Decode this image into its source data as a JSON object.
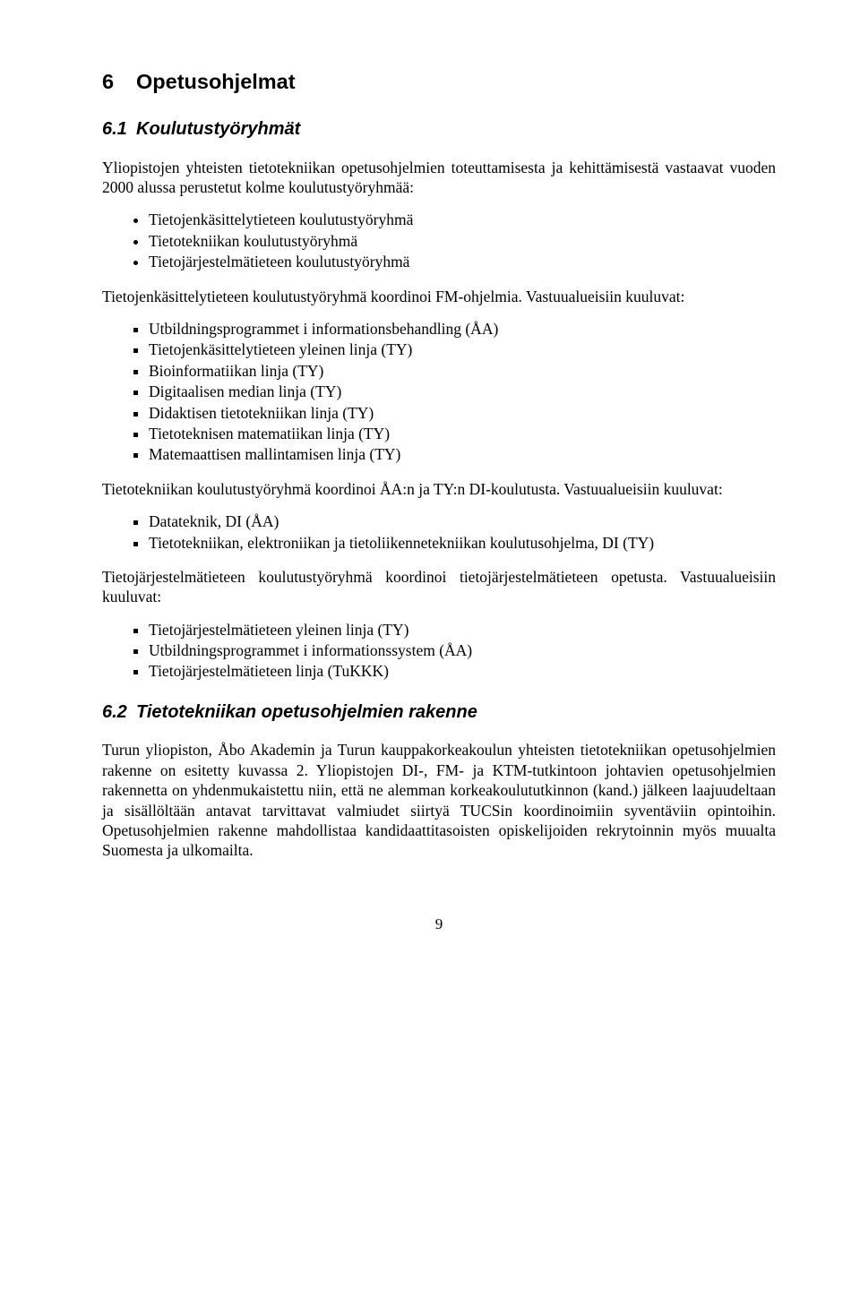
{
  "h1": {
    "num": "6",
    "text": "Opetusohjelmat"
  },
  "s61": {
    "num": "6.1",
    "heading": "Koulutustyöryhmät",
    "intro": "Yliopistojen yhteisten tietotekniikan opetusohjelmien toteuttamisesta ja kehittämisestä vastaavat vuoden 2000 alussa perustetut kolme koulutustyöryhmää:",
    "bullets1": [
      "Tietojenkäsittelytieteen koulutustyöryhmä",
      "Tietotekniikan koulutustyöryhmä",
      "Tietojärjestelmätieteen koulutustyöryhmä"
    ],
    "p2": "Tietojenkäsittelytieteen koulutustyöryhmä koordinoi FM-ohjelmia. Vastuualueisiin kuuluvat:",
    "bullets2": [
      "Utbildningsprogrammet i informationsbehandling (ÅA)",
      "Tietojenkäsittelytieteen yleinen linja (TY)",
      "Bioinformatiikan linja (TY)",
      "Digitaalisen median linja (TY)",
      "Didaktisen tietotekniikan linja (TY)",
      "Tietoteknisen matematiikan linja (TY)",
      "Matemaattisen mallintamisen linja (TY)"
    ],
    "p3": "Tietotekniikan koulutustyöryhmä koordinoi ÅA:n ja TY:n DI-koulutusta. Vastuualueisiin kuuluvat:",
    "bullets3": [
      "Datateknik, DI (ÅA)",
      "Tietotekniikan, elektroniikan ja tietoliikennetekniikan koulutusohjelma, DI (TY)"
    ],
    "p4": "Tietojärjestelmätieteen koulutustyöryhmä koordinoi tietojärjestelmätieteen opetusta. Vastuualueisiin kuuluvat:",
    "bullets4": [
      "Tietojärjestelmätieteen yleinen linja (TY)",
      "Utbildningsprogrammet i informationssystem (ÅA)",
      "Tietojärjestelmätieteen linja (TuKKK)"
    ]
  },
  "s62": {
    "num": "6.2",
    "heading": "Tietotekniikan opetusohjelmien rakenne",
    "body": "Turun yliopiston, Åbo Akademin ja Turun kauppakorkeakoulun yhteisten tietotekniikan opetusohjelmien rakenne on esitetty kuvassa 2. Yliopistojen DI-, FM- ja KTM-tutkintoon johtavien opetusohjelmien rakennetta on yhdenmukaistettu niin, että ne alemman korkeakoulututkinnon (kand.) jälkeen laajuudeltaan ja sisällöltään antavat tarvittavat valmiudet siirtyä TUCSin koordinoimiin syventäviin opintoihin. Opetusohjelmien rakenne mahdollistaa kandidaattitasoisten opiskelijoiden rekrytoinnin myös muualta Suomesta ja ulkomailta."
  },
  "pagenum": "9"
}
